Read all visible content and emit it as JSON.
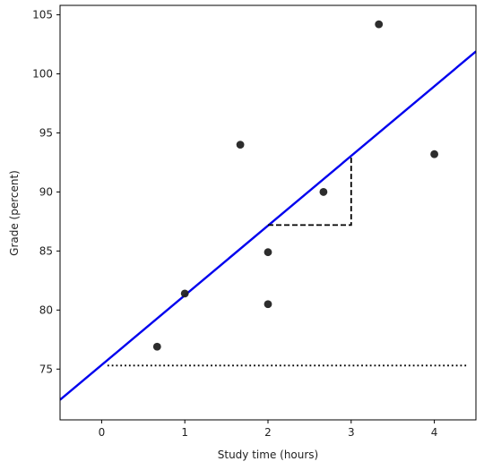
{
  "chart_data": {
    "type": "scatter",
    "xlabel": "Study time (hours)",
    "ylabel": "Grade (percent)",
    "xlim": [
      -0.5,
      4.5
    ],
    "ylim": [
      70.7,
      105.8
    ],
    "xticks": [
      0,
      1,
      2,
      3,
      4
    ],
    "yticks": [
      75,
      80,
      85,
      90,
      95,
      100,
      105
    ],
    "grid": false,
    "series": [
      {
        "kind": "scatter",
        "color": "#222222",
        "x": [
          0.667,
          1.0,
          1.667,
          2.0,
          2.0,
          2.667,
          3.333,
          4.0
        ],
        "y": [
          76.9,
          81.4,
          94.0,
          84.9,
          80.5,
          90.0,
          104.2,
          93.2
        ]
      },
      {
        "kind": "line",
        "style": "solid",
        "color": "#0000ee",
        "x": [
          -0.5,
          4.5
        ],
        "y": [
          72.4,
          101.9
        ]
      },
      {
        "kind": "line",
        "style": "dashed",
        "color": "#000000",
        "x": [
          2.0,
          3.0,
          3.0
        ],
        "y": [
          87.2,
          87.2,
          93.0
        ]
      },
      {
        "kind": "line",
        "style": "dotted",
        "color": "#000000",
        "x": [
          0.07,
          4.4
        ],
        "y": [
          75.3,
          75.3
        ]
      }
    ]
  }
}
